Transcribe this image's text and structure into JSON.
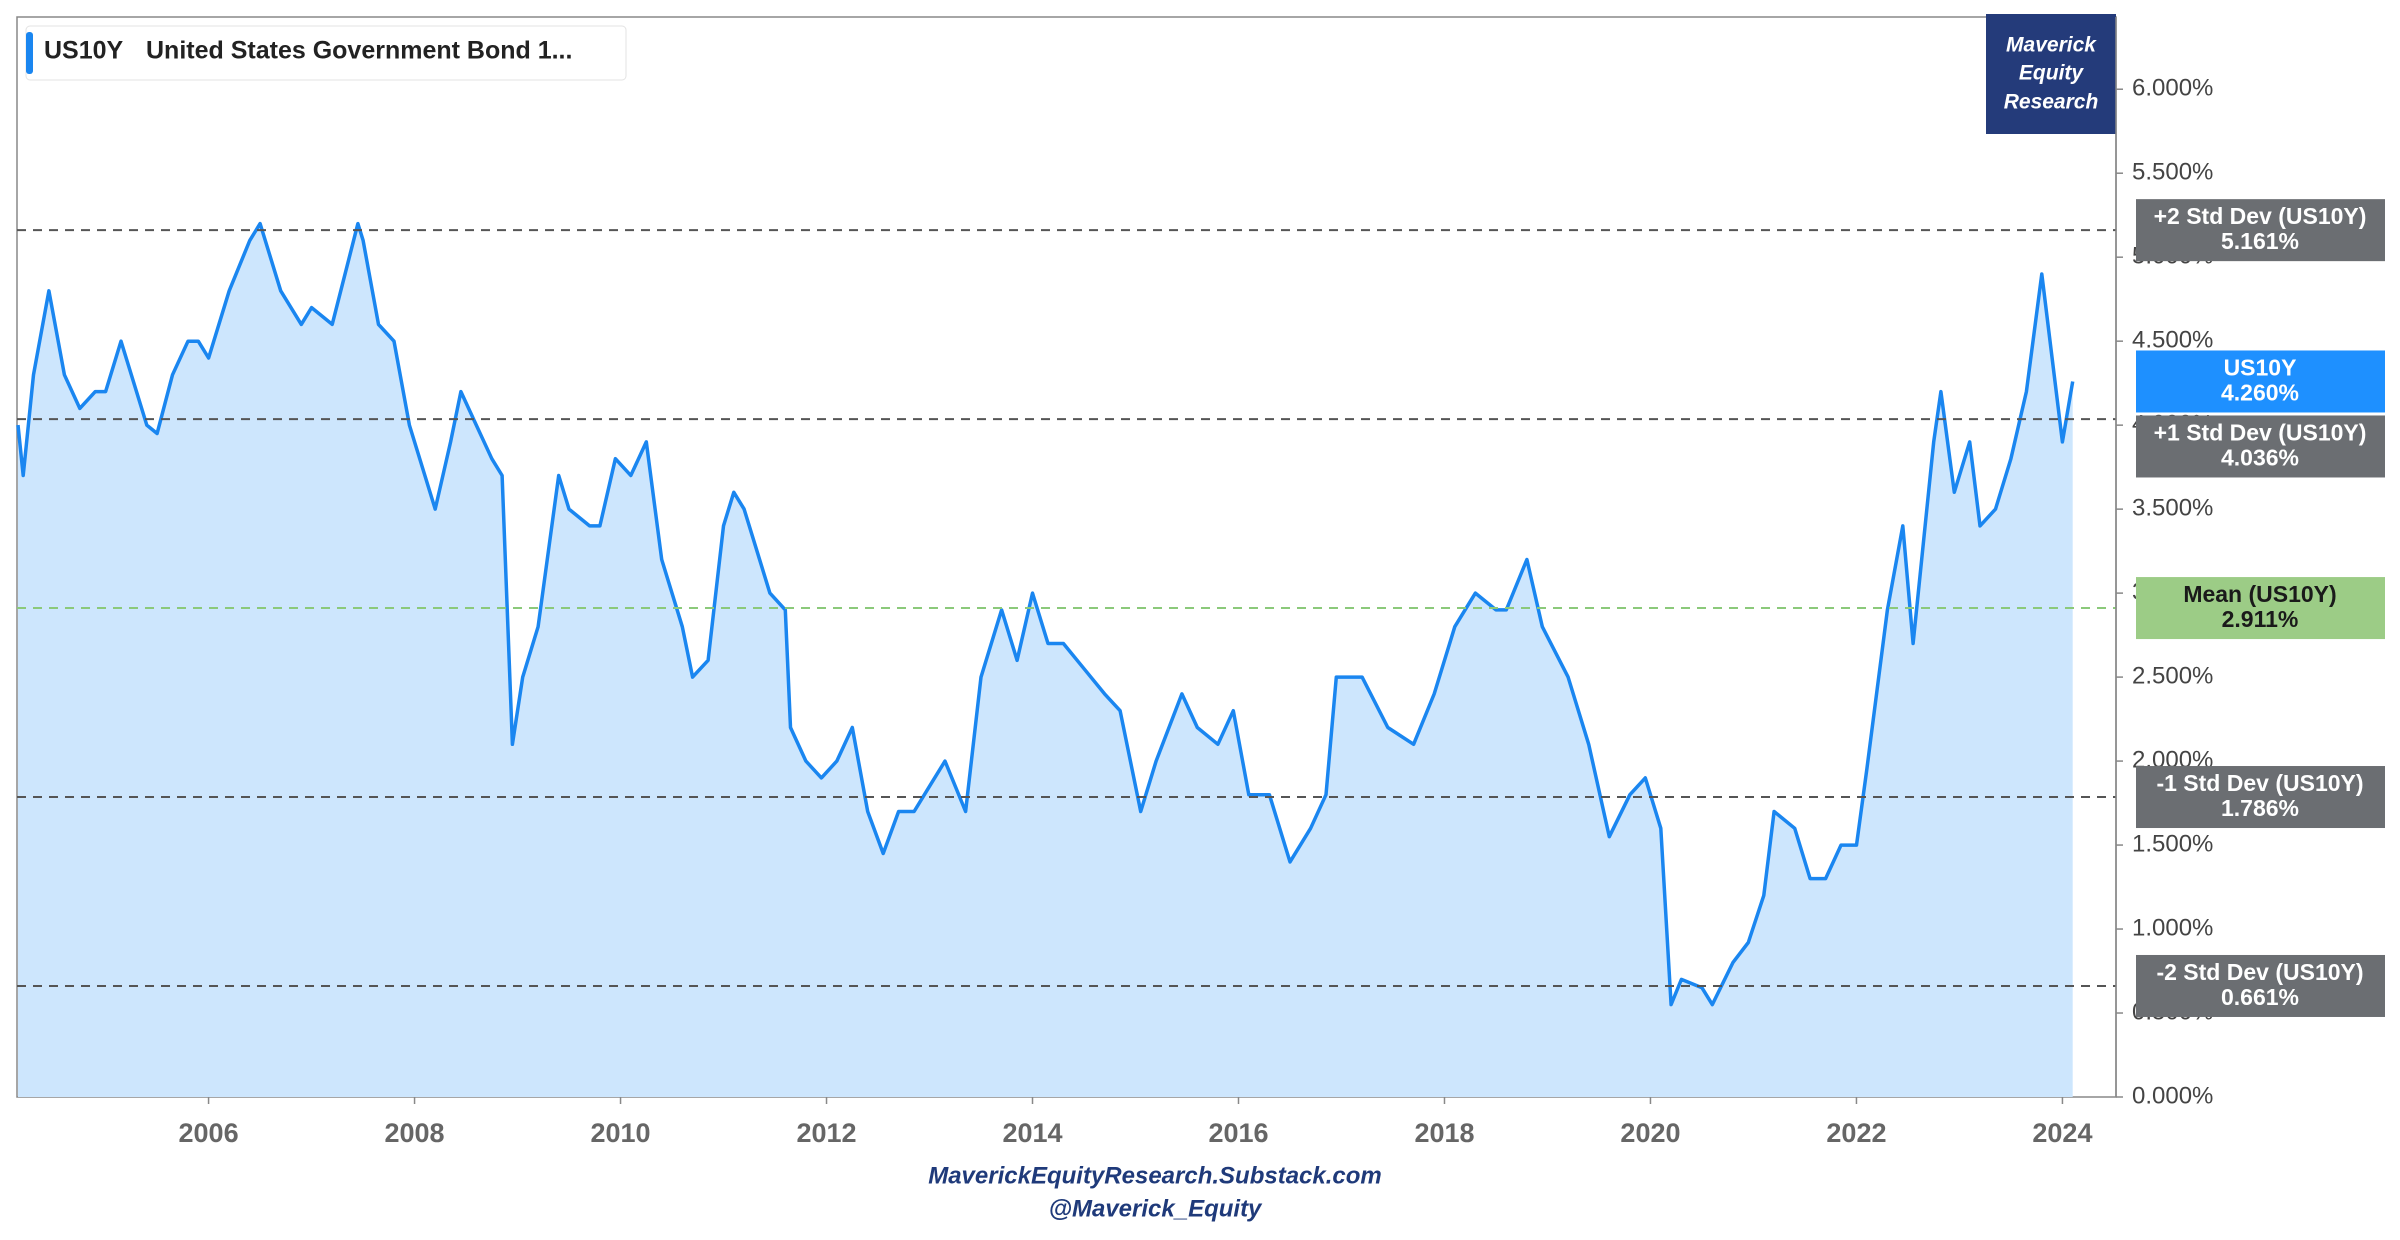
{
  "chart_data": {
    "type": "line",
    "legend_symbol": "US10Y",
    "legend_description": "United States Government Bond 1...",
    "watermark": [
      "Maverick",
      "Equity",
      "Research"
    ],
    "footer": [
      "MaverickEquityResearch.Substack.com",
      "@Maverick_Equity"
    ],
    "x": [
      2004.15,
      2004.2,
      2004.3,
      2004.45,
      2004.6,
      2004.75,
      2004.9,
      2005.0,
      2005.15,
      2005.4,
      2005.5,
      2005.65,
      2005.8,
      2005.9,
      2006.0,
      2006.2,
      2006.4,
      2006.5,
      2006.7,
      2006.9,
      2007.0,
      2007.2,
      2007.45,
      2007.5,
      2007.65,
      2007.8,
      2007.95,
      2008.2,
      2008.35,
      2008.45,
      2008.6,
      2008.75,
      2008.85,
      2008.95,
      2009.05,
      2009.2,
      2009.4,
      2009.5,
      2009.7,
      2009.8,
      2009.95,
      2010.1,
      2010.25,
      2010.4,
      2010.6,
      2010.7,
      2010.85,
      2011.0,
      2011.1,
      2011.2,
      2011.45,
      2011.6,
      2011.65,
      2011.8,
      2011.95,
      2012.1,
      2012.25,
      2012.4,
      2012.55,
      2012.7,
      2012.85,
      2013.0,
      2013.15,
      2013.35,
      2013.5,
      2013.7,
      2013.85,
      2014.0,
      2014.15,
      2014.3,
      2014.5,
      2014.7,
      2014.85,
      2015.05,
      2015.2,
      2015.45,
      2015.6,
      2015.8,
      2015.95,
      2016.1,
      2016.3,
      2016.5,
      2016.7,
      2016.85,
      2016.95,
      2017.2,
      2017.45,
      2017.7,
      2017.9,
      2018.1,
      2018.3,
      2018.5,
      2018.6,
      2018.8,
      2018.95,
      2019.2,
      2019.4,
      2019.6,
      2019.8,
      2019.95,
      2020.1,
      2020.2,
      2020.3,
      2020.5,
      2020.6,
      2020.8,
      2020.95,
      2021.1,
      2021.2,
      2021.4,
      2021.55,
      2021.7,
      2021.85,
      2022.0,
      2022.1,
      2022.3,
      2022.45,
      2022.55,
      2022.75,
      2022.82,
      2022.95,
      2023.1,
      2023.2,
      2023.35,
      2023.5,
      2023.65,
      2023.8,
      2023.9,
      2024.0,
      2024.1
    ],
    "series": [
      {
        "name": "US10Y",
        "color": "#1a86f0",
        "area_color": "#cde6fd",
        "values": [
          4.0,
          3.7,
          4.3,
          4.8,
          4.3,
          4.1,
          4.2,
          4.2,
          4.5,
          4.0,
          3.95,
          4.3,
          4.5,
          4.5,
          4.4,
          4.8,
          5.1,
          5.2,
          4.8,
          4.6,
          4.7,
          4.6,
          5.2,
          5.1,
          4.6,
          4.5,
          4.0,
          3.5,
          3.9,
          4.2,
          4.0,
          3.8,
          3.7,
          2.1,
          2.5,
          2.8,
          3.7,
          3.5,
          3.4,
          3.4,
          3.8,
          3.7,
          3.9,
          3.2,
          2.8,
          2.5,
          2.6,
          3.4,
          3.6,
          3.5,
          3.0,
          2.9,
          2.2,
          2.0,
          1.9,
          2.0,
          2.2,
          1.7,
          1.45,
          1.7,
          1.7,
          1.85,
          2.0,
          1.7,
          2.5,
          2.9,
          2.6,
          3.0,
          2.7,
          2.7,
          2.55,
          2.4,
          2.3,
          1.7,
          2.0,
          2.4,
          2.2,
          2.1,
          2.3,
          1.8,
          1.8,
          1.4,
          1.6,
          1.8,
          2.5,
          2.5,
          2.2,
          2.1,
          2.4,
          2.8,
          3.0,
          2.9,
          2.9,
          3.2,
          2.8,
          2.5,
          2.1,
          1.55,
          1.8,
          1.9,
          1.6,
          0.55,
          0.7,
          0.65,
          0.55,
          0.8,
          0.92,
          1.2,
          1.7,
          1.6,
          1.3,
          1.3,
          1.5,
          1.5,
          1.95,
          2.9,
          3.4,
          2.7,
          3.9,
          4.2,
          3.6,
          3.9,
          3.4,
          3.5,
          3.8,
          4.2,
          4.9,
          4.4,
          3.9,
          4.26
        ],
        "current": {
          "value": 4.26,
          "label": "4.260%",
          "color": "#1e90ff"
        }
      }
    ],
    "reference_lines": [
      {
        "name": "+2 Std Dev (US10Y)",
        "value": 5.161,
        "label": "5.161%",
        "color": "#6b6e72",
        "line_color": "#555"
      },
      {
        "name": "+1 Std Dev (US10Y)",
        "value": 4.036,
        "label": "4.036%",
        "color": "#6b6e72",
        "line_color": "#555"
      },
      {
        "name": "Mean (US10Y)",
        "value": 2.911,
        "label": "2.911%",
        "color": "#9ccc86",
        "line_color": "#8bc97a"
      },
      {
        "name": "-1 Std Dev (US10Y)",
        "value": 1.786,
        "label": "1.786%",
        "color": "#6b6e72",
        "line_color": "#555"
      },
      {
        "name": "-2 Std Dev (US10Y)",
        "value": 0.661,
        "label": "0.661%",
        "color": "#6b6e72",
        "line_color": "#555"
      }
    ],
    "xlim": [
      2004.14,
      2024.52
    ],
    "xticks": [
      2006,
      2008,
      2010,
      2012,
      2014,
      2016,
      2018,
      2020,
      2022,
      2024
    ],
    "ylim": [
      0,
      6.43
    ],
    "yticks": [
      {
        "value": 0,
        "label": "0.000%"
      },
      {
        "value": 0.5,
        "label": "0.500%"
      },
      {
        "value": 1,
        "label": "1.000%"
      },
      {
        "value": 1.5,
        "label": "1.500%"
      },
      {
        "value": 2,
        "label": "2.000%"
      },
      {
        "value": 2.5,
        "label": "2.500%"
      },
      {
        "value": 3,
        "label": "3.000%"
      },
      {
        "value": 3.5,
        "label": "3.500%"
      },
      {
        "value": 4,
        "label": "4.000%"
      },
      {
        "value": 4.5,
        "label": "4.500%"
      },
      {
        "value": 5,
        "label": "5.000%"
      },
      {
        "value": 5.5,
        "label": "5.500%"
      },
      {
        "value": 6,
        "label": "6.000%"
      }
    ],
    "y_axis_side": "right"
  }
}
